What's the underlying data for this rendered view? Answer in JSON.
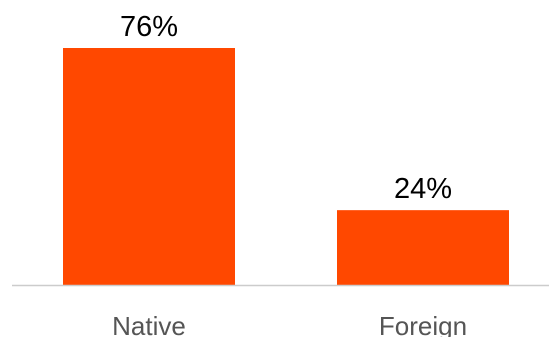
{
  "chart_data": {
    "type": "bar",
    "categories": [
      "Native",
      "Foreign"
    ],
    "values": [
      76,
      24
    ],
    "value_labels": [
      "76%",
      "24%"
    ],
    "title": "",
    "xlabel": "",
    "ylabel": "",
    "ylim": [
      0,
      76
    ],
    "grid": false,
    "legend": "none",
    "bar_color": "#FF4800",
    "baseline_color": "#cccccc",
    "value_label_color": "#000000",
    "category_label_color": "#555555"
  }
}
